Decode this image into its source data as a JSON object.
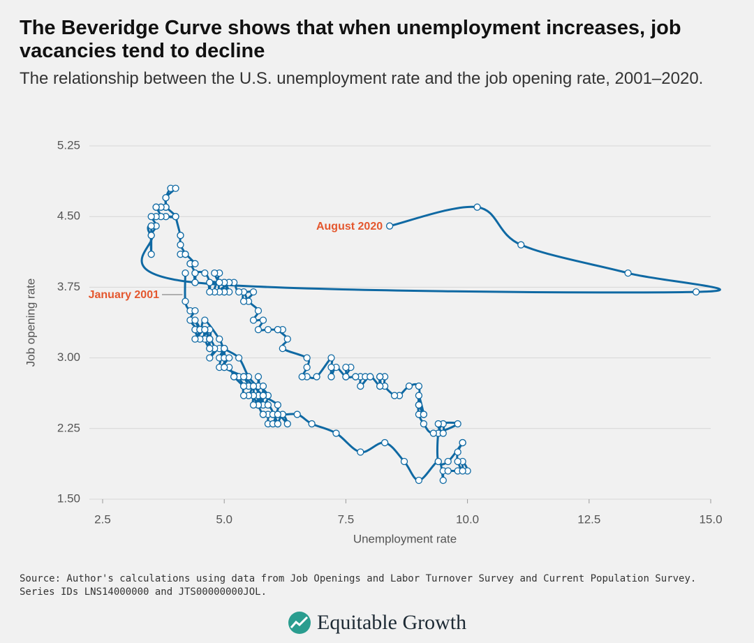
{
  "chart_data": {
    "type": "line",
    "title": "The Beveridge Curve shows that when unemployment increases, job vacancies tend to decline",
    "subtitle": "The relationship between the U.S. unemployment rate and the job opening rate, 2001–2020.",
    "x_label": "Unemployment rate",
    "y_label": "Job opening rate",
    "xlim": [
      2.5,
      15.0
    ],
    "ylim": [
      1.5,
      5.25
    ],
    "xticks": [
      {
        "value": 2.5,
        "label": "2.5"
      },
      {
        "value": 5,
        "label": "5.0"
      },
      {
        "value": 7.5,
        "label": "7.5"
      },
      {
        "value": 10,
        "label": "10.0"
      },
      {
        "value": 12.5,
        "label": "12.5"
      },
      {
        "value": 15,
        "label": "15.0"
      }
    ],
    "yticks": [
      {
        "value": 1.5,
        "label": "1.50"
      },
      {
        "value": 2.25,
        "label": "2.25"
      },
      {
        "value": 3,
        "label": "3.00"
      },
      {
        "value": 3.75,
        "label": "3.75"
      },
      {
        "value": 4.5,
        "label": "4.50"
      },
      {
        "value": 5.25,
        "label": "5.25"
      }
    ],
    "grid": true,
    "color": "#0f69a3",
    "x": [
      4.2,
      4.2,
      4.3,
      4.4,
      4.3,
      4.5,
      4.6,
      4.9,
      5.0,
      5.3,
      5.5,
      5.7,
      5.7,
      5.7,
      5.7,
      5.9,
      5.8,
      5.8,
      5.8,
      5.7,
      5.7,
      5.7,
      5.9,
      6.0,
      5.8,
      5.9,
      5.9,
      6.0,
      6.1,
      6.3,
      6.2,
      6.1,
      6.1,
      6.0,
      5.8,
      5.7,
      5.7,
      5.6,
      5.8,
      5.6,
      5.6,
      5.6,
      5.5,
      5.4,
      5.4,
      5.5,
      5.4,
      5.4,
      5.3,
      5.4,
      5.2,
      5.2,
      5.1,
      5.0,
      5.0,
      4.9,
      5.0,
      5.0,
      5.0,
      4.9,
      4.7,
      4.8,
      4.7,
      4.7,
      4.6,
      4.6,
      4.7,
      4.7,
      4.5,
      4.4,
      4.5,
      4.4,
      4.6,
      4.5,
      4.4,
      4.5,
      4.4,
      4.6,
      4.7,
      4.6,
      4.7,
      4.7,
      4.7,
      5.0,
      5.0,
      4.9,
      5.1,
      5.0,
      5.4,
      5.6,
      5.8,
      6.1,
      6.1,
      6.5,
      6.8,
      7.3,
      7.8,
      8.3,
      8.7,
      9.0,
      9.4,
      9.5,
      9.5,
      9.6,
      9.8,
      10.0,
      9.9,
      9.9,
      9.8,
      9.8,
      9.9,
      9.9,
      9.6,
      9.4,
      9.4,
      9.5,
      9.5,
      9.4,
      9.8,
      9.3,
      9.1,
      9.0,
      9.0,
      9.1,
      9.0,
      9.1,
      9.0,
      9.0,
      9.0,
      8.8,
      8.6,
      8.5,
      8.3,
      8.3,
      8.2,
      8.2,
      8.2,
      8.2,
      8.2,
      8.0,
      7.8,
      7.8,
      7.7,
      7.9,
      8.0,
      7.7,
      7.5,
      7.6,
      7.5,
      7.5,
      7.3,
      7.2,
      7.2,
      7.2,
      6.9,
      6.7,
      6.6,
      6.7,
      6.7,
      6.2,
      6.3,
      6.1,
      6.2,
      6.1,
      5.9,
      5.7,
      5.8,
      5.6,
      5.7,
      5.5,
      5.4,
      5.4,
      5.6,
      5.3,
      5.2,
      5.1,
      5.0,
      5.0,
      5.1,
      5.0,
      4.9,
      4.9,
      5.0,
      5.1,
      4.8,
      4.9,
      4.8,
      4.9,
      5.0,
      4.9,
      4.7,
      4.7,
      4.7,
      4.6,
      4.4,
      4.4,
      4.4,
      4.3,
      4.3,
      4.4,
      4.2,
      4.1,
      4.2,
      4.1,
      4.1,
      4.1,
      4.0,
      4.0,
      3.8,
      4.0,
      3.8,
      3.8,
      3.7,
      3.8,
      3.8,
      3.9,
      4.0,
      3.8,
      3.8,
      3.7,
      3.6,
      3.6,
      3.7,
      3.6,
      3.5,
      3.6,
      3.5,
      3.5,
      3.5,
      3.5,
      4.4,
      14.7,
      13.3,
      11.1,
      10.2,
      8.4
    ],
    "values": [
      3.9,
      3.6,
      3.5,
      3.5,
      3.4,
      3.3,
      3.4,
      3.2,
      3.1,
      3.0,
      2.8,
      2.7,
      2.8,
      2.6,
      2.7,
      2.6,
      2.5,
      2.7,
      2.6,
      2.5,
      2.6,
      2.5,
      2.5,
      2.4,
      2.4,
      2.4,
      2.3,
      2.3,
      2.4,
      2.3,
      2.4,
      2.3,
      2.3,
      2.4,
      2.4,
      2.5,
      2.5,
      2.6,
      2.6,
      2.5,
      2.6,
      2.7,
      2.6,
      2.6,
      2.7,
      2.7,
      2.8,
      2.8,
      2.8,
      2.7,
      2.8,
      2.8,
      2.9,
      2.9,
      3.0,
      3.0,
      3.1,
      3.1,
      3.0,
      3.1,
      3.0,
      3.1,
      3.2,
      3.1,
      3.2,
      3.3,
      3.2,
      3.3,
      3.2,
      3.3,
      3.3,
      3.3,
      3.3,
      3.3,
      3.4,
      3.3,
      3.2,
      3.3,
      3.2,
      3.3,
      3.2,
      3.2,
      3.1,
      3.1,
      3.1,
      2.9,
      3.0,
      2.9,
      2.8,
      2.7,
      2.6,
      2.5,
      2.4,
      2.4,
      2.3,
      2.2,
      2.0,
      2.1,
      1.9,
      1.7,
      1.9,
      1.7,
      1.8,
      1.8,
      1.8,
      1.8,
      1.9,
      1.8,
      1.9,
      2.0,
      2.1,
      2.1,
      1.9,
      1.9,
      2.2,
      2.3,
      2.2,
      2.3,
      2.3,
      2.2,
      2.3,
      2.4,
      2.5,
      2.4,
      2.5,
      2.4,
      2.6,
      2.5,
      2.7,
      2.7,
      2.6,
      2.6,
      2.7,
      2.8,
      2.8,
      2.7,
      2.8,
      2.8,
      2.7,
      2.8,
      2.7,
      2.8,
      2.8,
      2.8,
      2.8,
      2.8,
      2.8,
      2.9,
      2.9,
      2.8,
      2.9,
      2.8,
      2.9,
      3.0,
      2.8,
      2.8,
      2.8,
      2.9,
      3.0,
      3.1,
      3.2,
      3.3,
      3.3,
      3.3,
      3.3,
      3.3,
      3.4,
      3.4,
      3.5,
      3.6,
      3.7,
      3.6,
      3.7,
      3.7,
      3.8,
      3.8,
      3.7,
      3.8,
      3.7,
      3.7,
      3.7,
      3.8,
      3.8,
      3.8,
      3.7,
      3.9,
      3.9,
      3.8,
      3.8,
      3.8,
      3.8,
      3.7,
      3.8,
      3.9,
      3.9,
      3.8,
      3.9,
      4.0,
      4.0,
      4.0,
      4.1,
      4.1,
      4.1,
      4.2,
      4.3,
      4.3,
      4.5,
      4.5,
      4.5,
      4.5,
      4.6,
      4.6,
      4.6,
      4.6,
      4.7,
      4.8,
      4.8,
      4.7,
      4.6,
      4.6,
      4.6,
      4.6,
      4.5,
      4.5,
      4.5,
      4.4,
      4.3,
      4.1,
      4.4,
      4.3,
      3.8,
      3.7,
      3.9,
      4.2,
      4.6,
      4.4
    ],
    "annotations": [
      {
        "text": "January 2001",
        "color": "#e4572e"
      },
      {
        "text": "August 2020",
        "color": "#e4572e"
      }
    ],
    "source": "Source: Author's calculations using data from Job Openings and Labor Turnover Survey and Current Population Survey. Series IDs LNS14000000 and JTS00000000JOL.",
    "brand": "Equitable Growth"
  }
}
